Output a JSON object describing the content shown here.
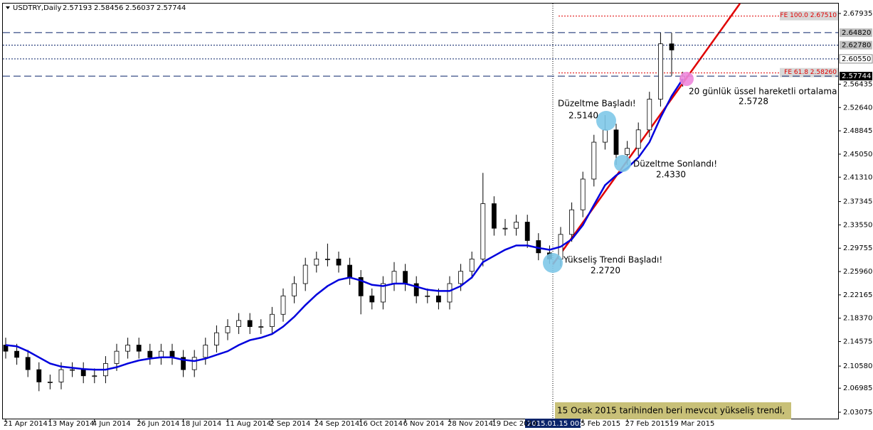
{
  "chart_data": {
    "type": "candlestick",
    "symbol": "USDTRY,Daily",
    "categories": [
      "21 Apr 2014",
      null,
      null,
      null,
      "13 May 2014",
      null,
      null,
      null,
      "4 Jun 2014",
      null,
      null,
      null,
      "26 Jun 2014",
      null,
      null,
      null,
      "18 Jul 2014",
      null,
      null,
      null,
      "11 Aug 2014",
      null,
      null,
      null,
      "2 Sep 2014",
      null,
      null,
      null,
      "24 Sep 2014",
      null,
      null,
      null,
      "16 Oct 2014",
      null,
      null,
      null,
      "6 Nov 2014",
      null,
      null,
      null,
      "28 Nov 2014",
      null,
      null,
      null,
      "19 Dec 2014",
      null,
      null,
      null,
      null,
      null,
      null,
      null,
      "5 Feb 2015",
      null,
      null,
      null,
      "27 Feb 2015",
      null,
      null,
      null,
      "19 Mar 2015",
      null
    ],
    "open": [
      2.14,
      2.13,
      2.12,
      2.1,
      2.08,
      2.08,
      2.1,
      2.1,
      2.09,
      2.09,
      2.11,
      2.13,
      2.14,
      2.13,
      2.12,
      2.13,
      2.12,
      2.1,
      2.12,
      2.14,
      2.16,
      2.17,
      2.18,
      2.17,
      2.17,
      2.19,
      2.22,
      2.24,
      2.27,
      2.28,
      2.28,
      2.27,
      2.25,
      2.22,
      2.21,
      2.24,
      2.26,
      2.24,
      2.22,
      2.22,
      2.21,
      2.24,
      2.26,
      2.28,
      2.37,
      2.33,
      2.33,
      2.34,
      2.31,
      2.29,
      2.28,
      2.32,
      2.36,
      2.41,
      2.47,
      2.49,
      2.45,
      2.46,
      2.49,
      2.54,
      2.63,
      2.57193
    ],
    "high": [
      2.152,
      2.142,
      2.132,
      2.112,
      2.092,
      2.112,
      2.112,
      2.112,
      2.102,
      2.122,
      2.142,
      2.152,
      2.152,
      2.142,
      2.142,
      2.142,
      2.132,
      2.132,
      2.152,
      2.172,
      2.182,
      2.192,
      2.192,
      2.182,
      2.202,
      2.232,
      2.252,
      2.282,
      2.292,
      2.305,
      2.292,
      2.282,
      2.262,
      2.232,
      2.252,
      2.275,
      2.272,
      2.252,
      2.232,
      2.232,
      2.252,
      2.272,
      2.292,
      2.42,
      2.382,
      2.345,
      2.352,
      2.352,
      2.322,
      2.302,
      2.332,
      2.372,
      2.422,
      2.482,
      2.514,
      2.5,
      2.472,
      2.502,
      2.552,
      2.648,
      2.648,
      2.58456
    ],
    "low": [
      2.118,
      2.108,
      2.088,
      2.065,
      2.068,
      2.068,
      2.088,
      2.078,
      2.078,
      2.078,
      2.098,
      2.118,
      2.118,
      2.108,
      2.108,
      2.108,
      2.088,
      2.088,
      2.108,
      2.128,
      2.148,
      2.158,
      2.158,
      2.158,
      2.158,
      2.178,
      2.208,
      2.228,
      2.258,
      2.268,
      2.258,
      2.238,
      2.19,
      2.198,
      2.198,
      2.228,
      2.228,
      2.208,
      2.208,
      2.198,
      2.198,
      2.228,
      2.248,
      2.268,
      2.318,
      2.318,
      2.318,
      2.298,
      2.278,
      2.272,
      2.268,
      2.308,
      2.348,
      2.398,
      2.458,
      2.433,
      2.433,
      2.448,
      2.478,
      2.528,
      2.578,
      2.56037
    ],
    "close": [
      2.13,
      2.12,
      2.1,
      2.08,
      2.08,
      2.1,
      2.1,
      2.09,
      2.09,
      2.11,
      2.13,
      2.14,
      2.13,
      2.12,
      2.13,
      2.12,
      2.1,
      2.12,
      2.14,
      2.16,
      2.17,
      2.18,
      2.17,
      2.17,
      2.19,
      2.22,
      2.24,
      2.27,
      2.28,
      2.28,
      2.27,
      2.25,
      2.22,
      2.21,
      2.24,
      2.26,
      2.24,
      2.22,
      2.22,
      2.21,
      2.24,
      2.26,
      2.28,
      2.37,
      2.33,
      2.33,
      2.34,
      2.31,
      2.29,
      2.28,
      2.32,
      2.36,
      2.41,
      2.47,
      2.49,
      2.45,
      2.46,
      2.49,
      2.54,
      2.63,
      2.62,
      2.57744
    ],
    "ema": {
      "name": "20 günlük üssel hareketli ortalama",
      "color": "#0000dd",
      "values": [
        2.14,
        2.138,
        2.13,
        2.12,
        2.11,
        2.105,
        2.103,
        2.101,
        2.1,
        2.1,
        2.104,
        2.11,
        2.115,
        2.118,
        2.12,
        2.12,
        2.116,
        2.114,
        2.118,
        2.124,
        2.13,
        2.14,
        2.148,
        2.152,
        2.158,
        2.17,
        2.186,
        2.205,
        2.222,
        2.236,
        2.246,
        2.25,
        2.245,
        2.238,
        2.236,
        2.24,
        2.24,
        2.235,
        2.23,
        2.228,
        2.228,
        2.236,
        2.25,
        2.275,
        2.285,
        2.295,
        2.302,
        2.302,
        2.298,
        2.295,
        2.3,
        2.312,
        2.335,
        2.368,
        2.4,
        2.416,
        2.428,
        2.445,
        2.47,
        2.51,
        2.545,
        2.5728
      ]
    },
    "ylim": [
      2.0192,
      2.6955
    ],
    "yticks": [
      {
        "value": 2.67935,
        "label": "2.67935"
      },
      {
        "value": 2.56435,
        "label": "2.56435"
      },
      {
        "value": 2.5264,
        "label": "2.52640"
      },
      {
        "value": 2.48845,
        "label": "2.48845"
      },
      {
        "value": 2.4505,
        "label": "2.45050"
      },
      {
        "value": 2.4131,
        "label": "2.41310"
      },
      {
        "value": 2.37345,
        "label": "2.37345"
      },
      {
        "value": 2.3355,
        "label": "2.33550"
      },
      {
        "value": 2.29755,
        "label": "2.29755"
      },
      {
        "value": 2.2596,
        "label": "2.25960"
      },
      {
        "value": 2.22165,
        "label": "2.22165"
      },
      {
        "value": 2.1837,
        "label": "2.18370"
      },
      {
        "value": 2.14575,
        "label": "2.14575"
      },
      {
        "value": 2.1058,
        "label": "2.10580"
      },
      {
        "value": 2.06985,
        "label": "2.06985"
      },
      {
        "value": 2.03075,
        "label": "2.03075"
      }
    ],
    "levels": [
      {
        "value": 2.6482,
        "label": "2.64820",
        "style": "dash",
        "box": "#c0c0c0"
      },
      {
        "value": 2.6278,
        "label": "2.62780",
        "style": "dot",
        "box": "#c0c0c0"
      },
      {
        "value": 2.6055,
        "label": "2.60550",
        "style": "dot",
        "box": "#ffffff"
      },
      {
        "value": 2.57744,
        "label": "2.57744",
        "style": "dash",
        "box": "#000000"
      }
    ],
    "fibo": [
      {
        "value": 2.6751,
        "label": "FE 100.0 2.67510"
      },
      {
        "value": 2.5826,
        "label": "FE 61.8 2.58260"
      }
    ],
    "crosshair_label": "2015.01.15 00:00",
    "annotations": [
      {
        "text": "Düzeltme Başladı!",
        "value_label": "2.5140"
      },
      {
        "text": "Düzeltme Sonlandı!",
        "value_label": "2.4330"
      },
      {
        "text": "Yükseliş Trendi Başladı!",
        "value_label": "2.2720"
      },
      {
        "text": "20 günlük üssel hareketli ortalama",
        "value_label": "2.5728"
      }
    ],
    "note": "15 Ocak 2015 tarihinden beri mevcut yükseliş trendi,"
  }
}
